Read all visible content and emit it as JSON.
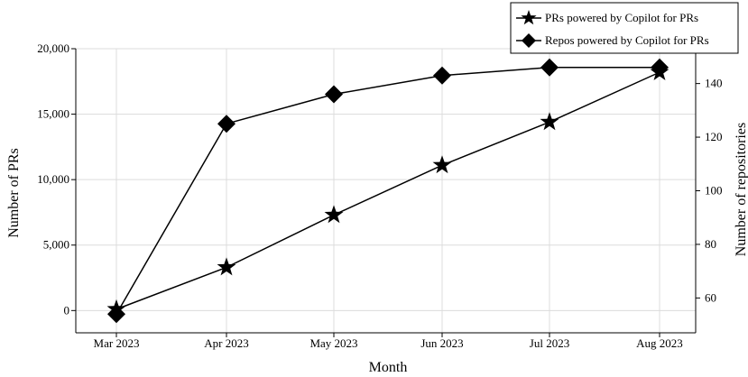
{
  "chart_data": {
    "type": "line",
    "title": "",
    "xlabel": "Month",
    "ylabel": "Number of PRs",
    "y2label": "Number of repositories",
    "categories": [
      "Mar 2023",
      "Apr 2023",
      "May 2023",
      "Jun 2023",
      "Jul 2023",
      "Aug 2023"
    ],
    "ylim": [
      -1700,
      20000
    ],
    "y2lim": [
      47,
      153
    ],
    "yticks": [
      0,
      5000,
      10000,
      15000,
      20000
    ],
    "ytick_labels": [
      "0",
      "5,000",
      "10,000",
      "15,000",
      "20,000"
    ],
    "y2ticks": [
      60,
      80,
      100,
      120,
      140
    ],
    "y2tick_labels": [
      "60",
      "80",
      "100",
      "120",
      "140"
    ],
    "grid": true,
    "legend_position": "top-right",
    "series": [
      {
        "name": "PRs powered by Copilot for PRs",
        "axis": "left",
        "marker": "star",
        "color": "#000000",
        "values": [
          100,
          3300,
          7300,
          11100,
          14400,
          18200
        ]
      },
      {
        "name": "Repos powered by Copilot for PRs",
        "axis": "right",
        "marker": "diamond",
        "color": "#000000",
        "values": [
          54,
          125,
          136,
          143,
          146,
          146
        ]
      }
    ]
  }
}
